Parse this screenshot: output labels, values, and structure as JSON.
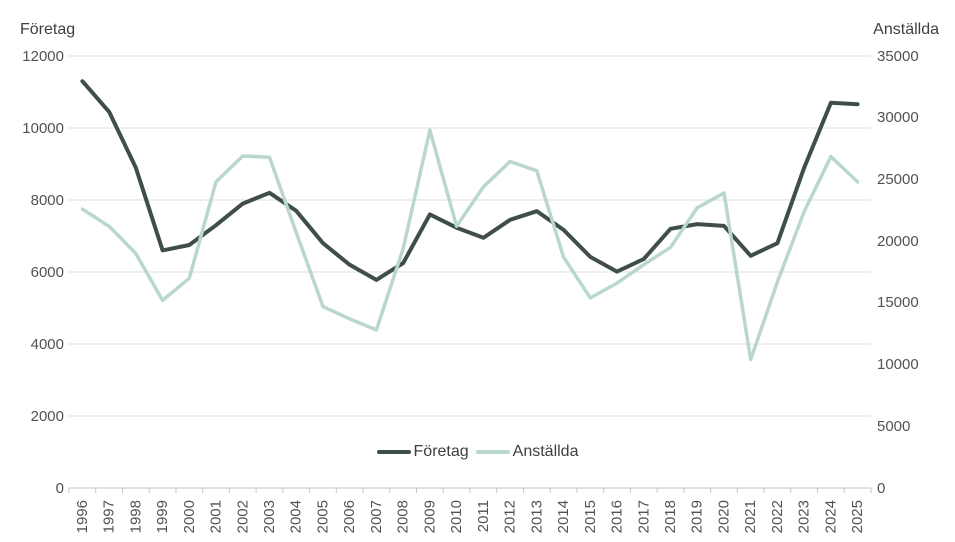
{
  "chart_data": {
    "type": "line",
    "title": "",
    "x": [
      "1996",
      "1997",
      "1998",
      "1999",
      "2000",
      "2001",
      "2002",
      "2003",
      "2004",
      "2005",
      "2006",
      "2007",
      "2008",
      "2009",
      "2010",
      "2011",
      "2012",
      "2013",
      "2014",
      "2015",
      "2016",
      "2017",
      "2018",
      "2019",
      "2020",
      "2021",
      "2022",
      "2023",
      "2024",
      "2025"
    ],
    "series": [
      {
        "name": "Företag",
        "axis": "left",
        "color": "#3f4f48",
        "stroke_width": 4,
        "values": [
          11300,
          10450,
          8900,
          6600,
          6750,
          7300,
          7900,
          8200,
          7700,
          6800,
          6200,
          5780,
          6250,
          7600,
          7230,
          6950,
          7450,
          7690,
          7170,
          6420,
          6010,
          6360,
          7200,
          7330,
          7280,
          6450,
          6800,
          8900,
          10700,
          10660
        ]
      },
      {
        "name": "Anställda",
        "axis": "right",
        "color": "#b9d7d0",
        "stroke_width": 3.5,
        "values": [
          22600,
          21200,
          19000,
          15200,
          17000,
          24800,
          26900,
          26800,
          20700,
          14700,
          13700,
          12800,
          19400,
          29000,
          21200,
          24400,
          26450,
          25700,
          18700,
          15400,
          16600,
          18100,
          19500,
          22700,
          23900,
          10400,
          16700,
          22400,
          26850,
          24800
        ]
      }
    ],
    "left_axis": {
      "title": "Företag",
      "min": 0,
      "max": 12000,
      "step": 2000,
      "ticks": [
        0,
        2000,
        4000,
        6000,
        8000,
        10000,
        12000
      ]
    },
    "right_axis": {
      "title": "Anställda",
      "min": 0,
      "max": 35000,
      "step": 5000,
      "ticks": [
        0,
        5000,
        10000,
        15000,
        20000,
        25000,
        30000,
        35000
      ]
    },
    "grid": true,
    "legend_position": "bottom-center",
    "legend": [
      "Företag",
      "Anställda"
    ]
  }
}
